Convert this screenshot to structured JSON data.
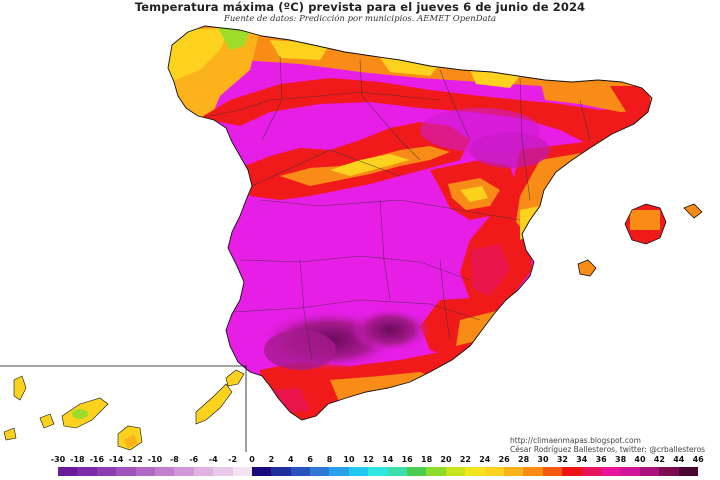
{
  "header": {
    "title": "Temperatura máxima (ºC) prevista para el jueves 6 de junio de 2024",
    "source": "Fuente de datos: Predicción por municipios. AEMET OpenData"
  },
  "credits": {
    "url": "http://climaenmapas.blogspot.com",
    "author": "César Rodríguez Ballesteros, twitter: @crballesteros"
  },
  "legend": {
    "ticks": [
      "-30",
      "-18",
      "-16",
      "-14",
      "-12",
      "-10",
      "-8",
      "-6",
      "-4",
      "-2",
      "0",
      "2",
      "4",
      "6",
      "8",
      "10",
      "12",
      "14",
      "16",
      "18",
      "20",
      "22",
      "24",
      "26",
      "28",
      "30",
      "32",
      "34",
      "36",
      "38",
      "40",
      "42",
      "44",
      "46"
    ],
    "colors": [
      "#6a1a9a",
      "#7d2aa8",
      "#8e3cb3",
      "#a052bd",
      "#b168c6",
      "#c27fcf",
      "#d198d9",
      "#dfb2e2",
      "#e9c9ea",
      "#f3e3f3",
      "#1a0a7a",
      "#1f2f9c",
      "#2a52be",
      "#2f78d6",
      "#2aa0ea",
      "#22c8f0",
      "#30e6e0",
      "#3ae0a8",
      "#4ccc50",
      "#8cdc2a",
      "#c8e41e",
      "#f4e41e",
      "#fcd21e",
      "#fcb21a",
      "#fa8c16",
      "#f65a12",
      "#ee1414",
      "#e8145a",
      "#e8149e",
      "#d2149a",
      "#a8127a",
      "#7a0c52",
      "#4a0630"
    ]
  },
  "map": {
    "colors": {
      "magenta": "#e61ee6",
      "deep_magenta": "#a81a90",
      "red": "#f01a1a",
      "crimson": "#e8144a",
      "orange": "#f88c16",
      "yellow": "#fcd21e",
      "green": "#9cdc2a"
    },
    "icons": [
      "spain-peninsula-map",
      "balearic-islands-map",
      "canary-islands-inset-map"
    ]
  }
}
